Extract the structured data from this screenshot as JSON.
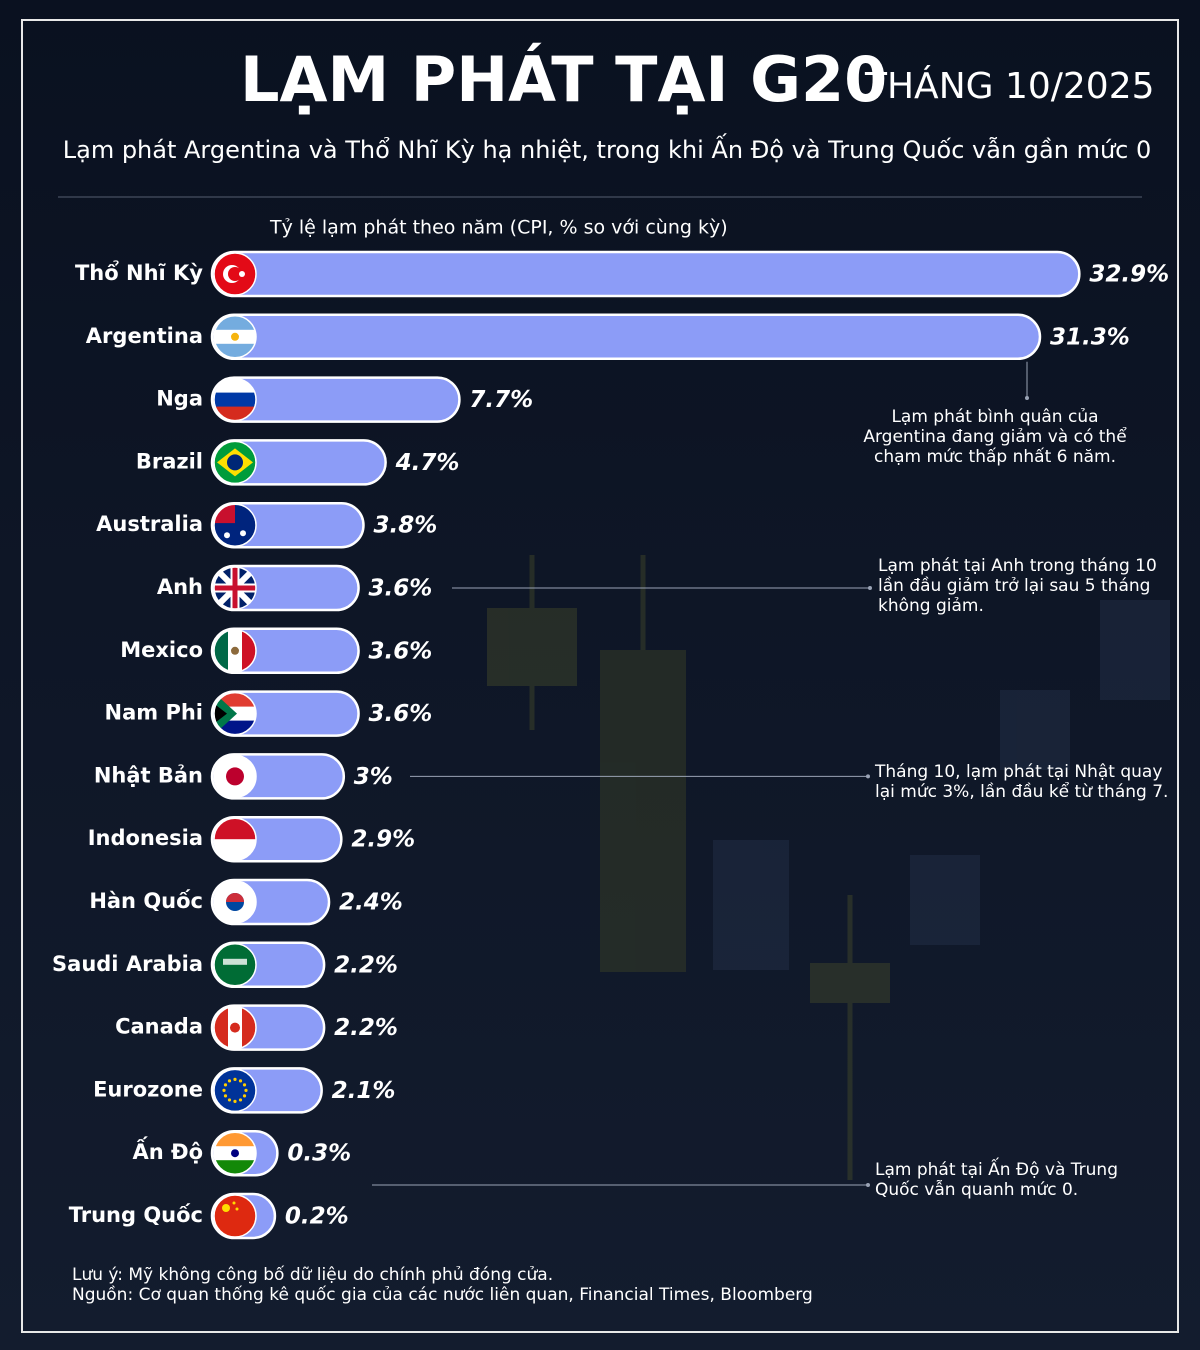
{
  "chart_data": {
    "type": "bar",
    "orientation": "horizontal",
    "title": "LẠM PHÁT TẠI G20",
    "title_suffix": "THÁNG 10/2025",
    "subtitle": "Lạm phát Argentina và Thổ Nhĩ Kỳ hạ nhiệt, trong khi Ấn Độ và Trung Quốc vẫn gần mức 0",
    "axis_label": "Tỷ lệ lạm phát theo năm (CPI, % so với cùng kỳ)",
    "categories": [
      "Thổ Nhĩ Kỳ",
      "Argentina",
      "Nga",
      "Brazil",
      "Australia",
      "Anh",
      "Mexico",
      "Nam Phi",
      "Nhật Bản",
      "Indonesia",
      "Hàn Quốc",
      "Saudi Arabia",
      "Canada",
      "Eurozone",
      "Ấn Độ",
      "Trung Quốc"
    ],
    "values": [
      32.9,
      31.3,
      7.7,
      4.7,
      3.8,
      3.6,
      3.6,
      3.6,
      3,
      2.9,
      2.4,
      2.2,
      2.2,
      2.1,
      0.3,
      0.2
    ],
    "value_labels": [
      "32.9%",
      "31.3%",
      "7.7%",
      "4.7%",
      "3.8%",
      "3.6%",
      "3.6%",
      "3.6%",
      "3%",
      "2.9%",
      "2.4%",
      "2.2%",
      "2.2%",
      "2.1%",
      "0.3%",
      "0.2%"
    ],
    "color": "#8c9cf7",
    "annotations": [
      {
        "category": 1,
        "text": [
          "Lạm phát bình quân của",
          "Argentina đang giảm và có thể",
          "chạm mức thấp nhất 6 năm."
        ]
      },
      {
        "category": 5,
        "text": [
          "Lạm phát tại Anh trong tháng 10",
          "lần đầu giảm trở lại sau 5 tháng",
          "không giảm."
        ]
      },
      {
        "category": 8,
        "text": [
          "Tháng 10, lạm phát tại Nhật quay",
          "lại mức 3%, lần đầu kể từ tháng 7."
        ]
      },
      {
        "category": 14,
        "text": [
          "Lạm phát tại Ấn Độ và Trung",
          "Quốc vẫn quanh mức 0."
        ]
      }
    ],
    "notes": [
      "Lưu ý: Mỹ không công bố dữ liệu do chính phủ đóng cửa.",
      "Nguồn: Cơ quan thống kê quốc gia của các nước liên quan, Financial Times, Bloomberg"
    ]
  }
}
